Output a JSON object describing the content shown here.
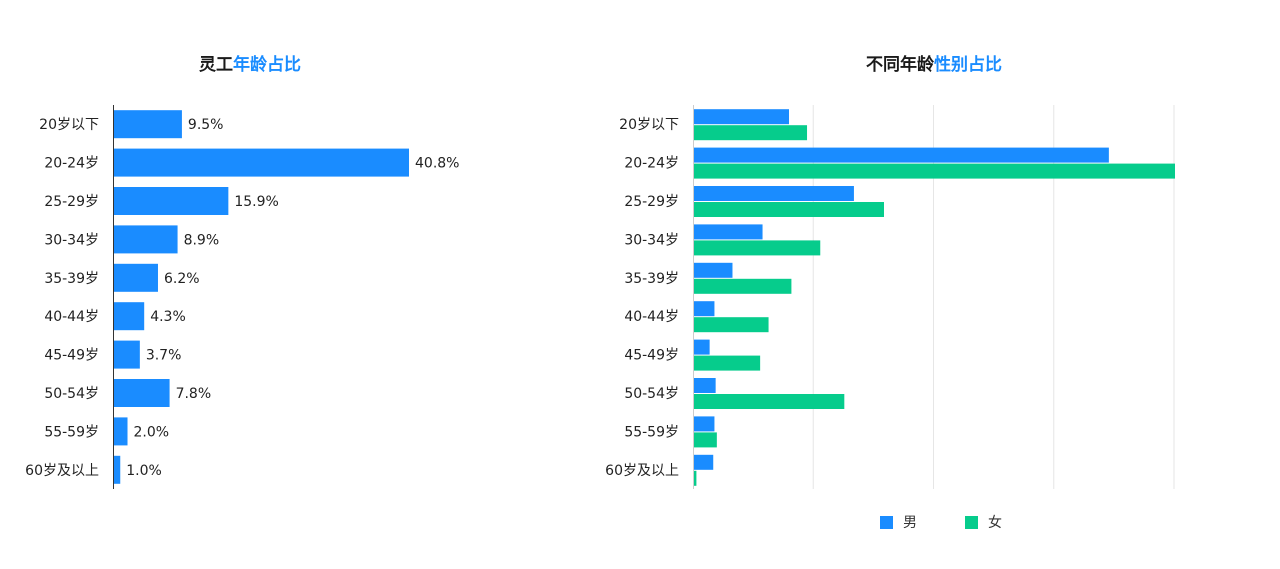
{
  "colors": {
    "male": "#1a8cff",
    "female": "#06cc8c",
    "title_accent": "#1a8cff"
  },
  "left_title": {
    "part1": "灵工",
    "part2": "年龄占比"
  },
  "right_title": {
    "part1": "不同年龄",
    "part2": "性别占比"
  },
  "legend": {
    "male": "男",
    "female": "女"
  },
  "chart_data": [
    {
      "type": "bar",
      "orientation": "horizontal",
      "title": "灵工年龄占比",
      "categories": [
        "20岁以下",
        "20-24岁",
        "25-29岁",
        "30-34岁",
        "35-39岁",
        "40-44岁",
        "45-49岁",
        "50-54岁",
        "55-59岁",
        "60岁及以上"
      ],
      "values": [
        9.5,
        40.8,
        15.9,
        8.9,
        6.2,
        4.3,
        3.7,
        7.8,
        2.0,
        1.0
      ],
      "data_labels": [
        "9.5%",
        "40.8%",
        "15.9%",
        "8.9%",
        "6.2%",
        "4.3%",
        "3.7%",
        "7.8%",
        "2.0%",
        "1.0%"
      ],
      "grid": false
    },
    {
      "type": "bar",
      "orientation": "horizontal",
      "title": "不同年龄性别占比",
      "categories": [
        "20岁以下",
        "20-24岁",
        "25-29岁",
        "30-34岁",
        "35-39岁",
        "40-44岁",
        "45-49岁",
        "50-54岁",
        "55-59岁",
        "60岁及以上"
      ],
      "series": [
        {
          "name": "男",
          "values": [
            7.9,
            34.5,
            13.3,
            5.7,
            3.2,
            1.7,
            1.3,
            1.8,
            1.7,
            1.6
          ]
        },
        {
          "name": "女",
          "values": [
            9.4,
            40.0,
            15.8,
            10.5,
            8.1,
            6.2,
            5.5,
            12.5,
            1.9,
            0.2
          ]
        }
      ],
      "xlim": [
        0,
        40
      ],
      "grid": true,
      "legend_position": "bottom"
    }
  ]
}
